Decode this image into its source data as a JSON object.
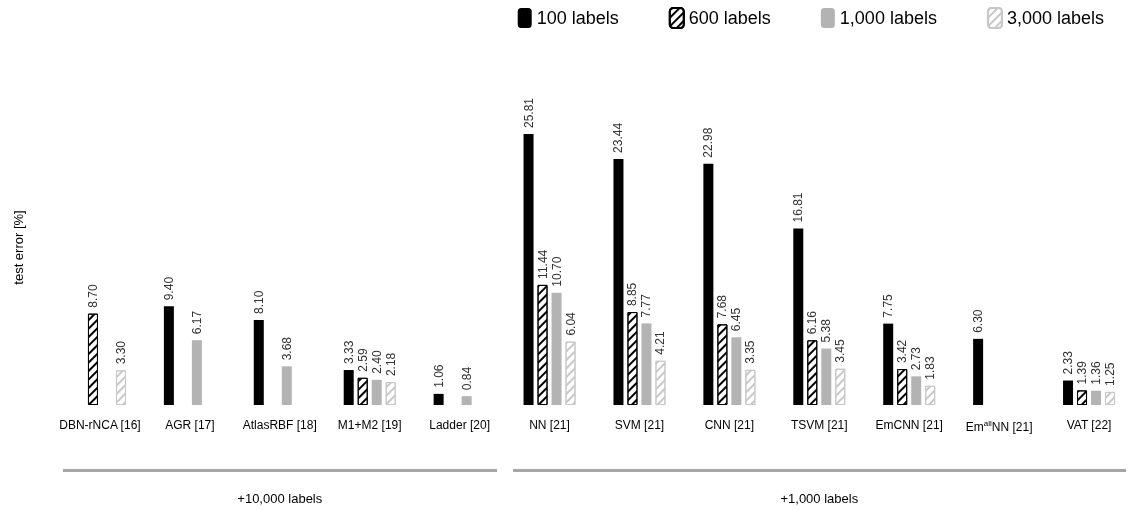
{
  "chart_data": {
    "type": "bar",
    "ylabel": "test error [%]",
    "categories": [
      "DBN-rNCA [16]",
      "AGR [17]",
      "AtlasRBF [18]",
      "M1+M2 [19]",
      "Ladder [20]",
      "NN [21]",
      "SVM [21]",
      "CNN [21]",
      "TSVM [21]",
      "EmCNN [21]",
      "Em$^{all}$NN [21]",
      "VAT [22]"
    ],
    "series": [
      {
        "name": "100 labels",
        "color": "#000000",
        "values": [
          null,
          9.4,
          8.1,
          3.33,
          1.06,
          25.81,
          23.44,
          22.98,
          16.81,
          7.75,
          6.3,
          2.33
        ],
        "value_labels": [
          null,
          "9.40",
          "8.10",
          "3.33",
          "1.06",
          "25.81",
          "23.44",
          "22.98",
          "16.81",
          "7.75",
          "6.30",
          "2.33"
        ]
      },
      {
        "name": "600 labels",
        "color": "#000000",
        "values": [
          8.7,
          null,
          null,
          2.59,
          null,
          11.44,
          8.85,
          7.68,
          6.16,
          3.42,
          null,
          1.39
        ],
        "value_labels": [
          "8.70",
          null,
          null,
          "2.59",
          null,
          "11.44",
          "8.85",
          "7.68",
          "6.16",
          "3.42",
          null,
          "1.39"
        ]
      },
      {
        "name": "1,000 labels",
        "color": "#b3b3b3",
        "values": [
          null,
          6.17,
          3.68,
          2.4,
          0.84,
          10.7,
          7.77,
          6.45,
          5.38,
          2.73,
          null,
          1.36
        ],
        "value_labels": [
          null,
          "6.17",
          "3.68",
          "2.40",
          "0.84",
          "10.70",
          "7.77",
          "6.45",
          "5.38",
          "2.73",
          null,
          "1.36"
        ]
      },
      {
        "name": "3,000 labels",
        "color": "#c8c8c8",
        "values": [
          3.3,
          null,
          null,
          2.18,
          null,
          6.04,
          4.21,
          3.35,
          3.45,
          1.83,
          null,
          1.25
        ],
        "value_labels": [
          "3.30",
          null,
          null,
          "2.18",
          null,
          "6.04",
          "4.21",
          "3.35",
          "3.45",
          "1.83",
          null,
          "1.25"
        ]
      }
    ],
    "annotations": [
      "+10,000 labels",
      "+1,000 labels"
    ],
    "legend": "top right",
    "tick_labels": "x",
    "grid": false
  }
}
